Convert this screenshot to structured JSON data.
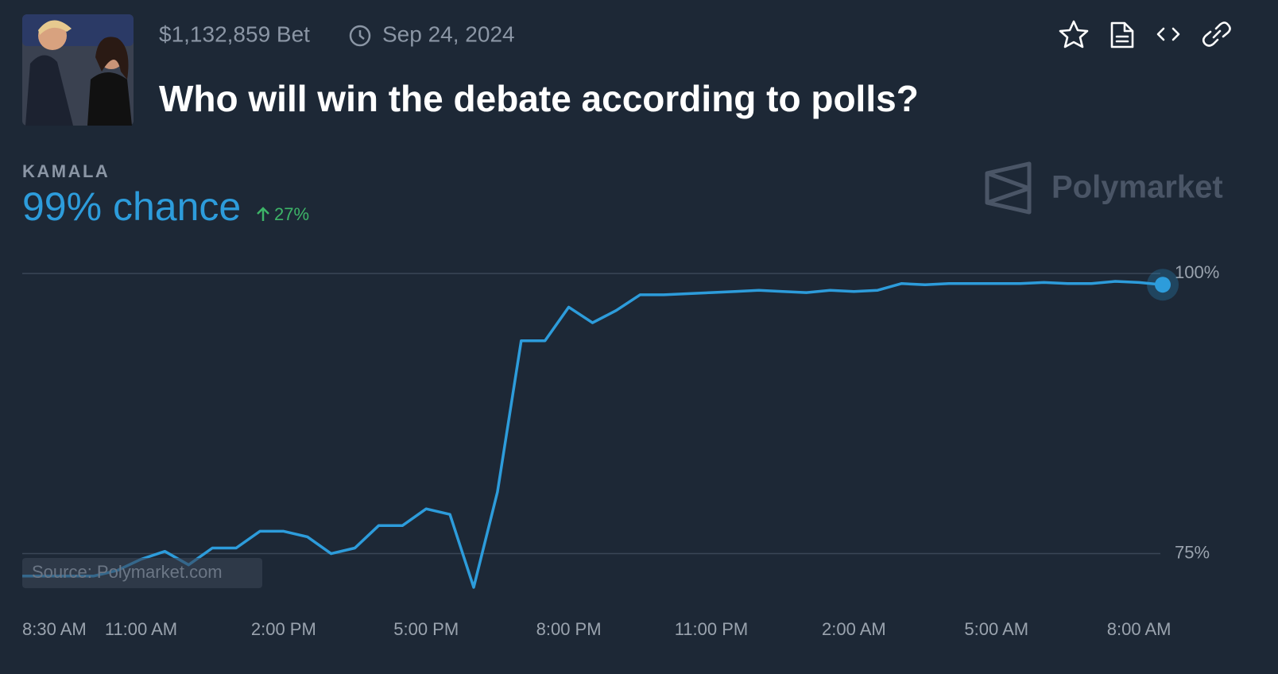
{
  "header": {
    "volume": "$1,132,859 Bet",
    "date": "Sep 24, 2024",
    "title": "Who will win the debate according to polls?"
  },
  "chart_data": {
    "type": "line",
    "outcome": "KAMALA",
    "chance": "99% chance",
    "change": "27%",
    "brand": "Polymarket",
    "source": "Source: Polymarket.com",
    "categories": [
      "8:30 AM",
      null,
      null,
      null,
      null,
      "11:00 AM",
      null,
      null,
      null,
      null,
      null,
      "2:00 PM",
      null,
      null,
      null,
      null,
      null,
      "5:00 PM",
      null,
      null,
      null,
      null,
      null,
      "8:00 PM",
      null,
      null,
      null,
      null,
      null,
      "11:00 PM",
      null,
      null,
      null,
      null,
      null,
      "2:00 AM",
      null,
      null,
      null,
      null,
      null,
      "5:00 AM",
      null,
      null,
      null,
      null,
      null,
      "8:00 AM",
      null
    ],
    "series": [
      {
        "name": "KAMALA",
        "color": "#2d9cdb",
        "values": [
          73,
          73,
          73,
          73,
          73.5,
          74.5,
          75.2,
          74,
          75.5,
          75.5,
          77,
          77,
          76.5,
          75,
          75.5,
          77.5,
          77.5,
          79,
          78.5,
          72,
          80.5,
          94,
          94,
          97,
          95.6,
          96.7,
          98.1,
          98.1,
          98.2,
          98.3,
          98.4,
          98.5,
          98.4,
          98.3,
          98.5,
          98.4,
          98.5,
          99.1,
          99,
          99.1,
          99.1,
          99.1,
          99.1,
          99.2,
          99.1,
          99.1,
          99.3,
          99.2,
          99
        ]
      }
    ],
    "ylim": [
      70.5,
      101
    ],
    "yticks": [
      {
        "value": 75,
        "label": "75%"
      },
      {
        "value": 100,
        "label": "100%"
      }
    ],
    "grid": true
  }
}
